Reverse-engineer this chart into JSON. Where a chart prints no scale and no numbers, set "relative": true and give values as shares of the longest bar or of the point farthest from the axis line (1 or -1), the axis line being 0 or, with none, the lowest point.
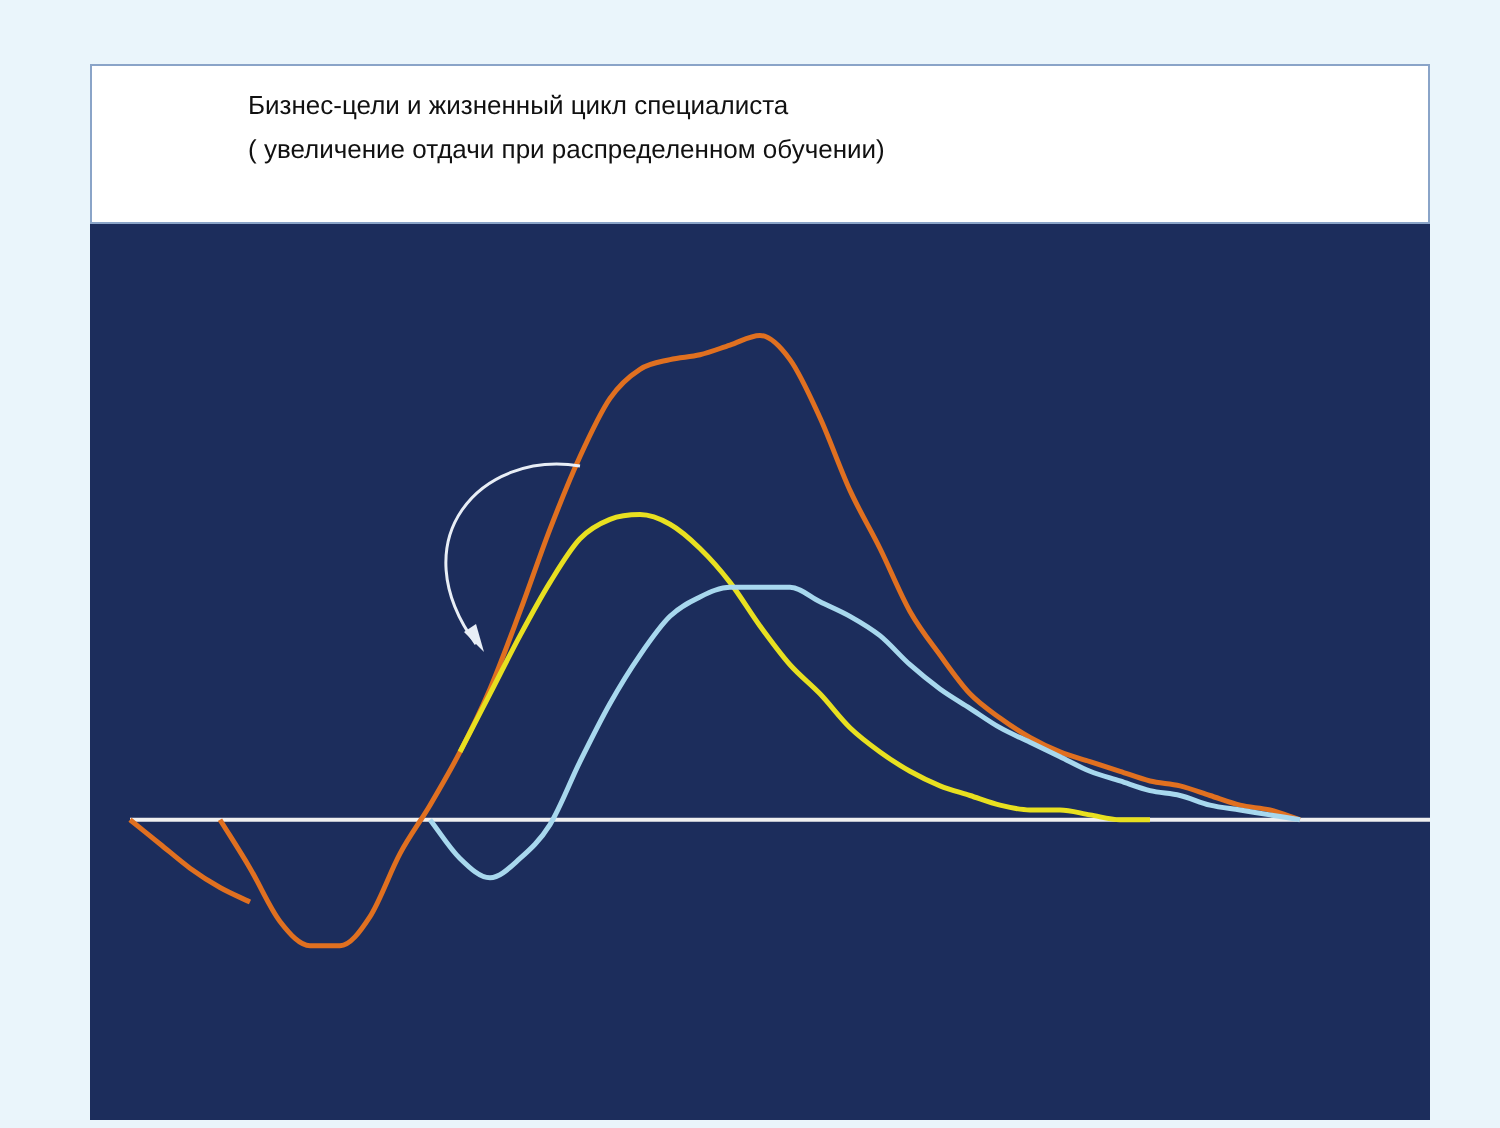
{
  "chart_data": {
    "type": "line",
    "title": "Бизнес-цели и жизненный цикл специалиста",
    "subtitle": "( увеличение отдачи при распределенном обучении)",
    "relative": true,
    "marker": "none",
    "line_style": "solid",
    "categories": [
      null,
      null,
      null,
      null,
      null,
      null,
      null,
      null,
      null,
      null,
      null,
      null,
      null,
      null,
      null,
      null,
      null,
      null,
      null,
      null,
      null,
      null,
      null,
      null,
      null,
      null,
      null,
      null,
      null,
      null,
      null,
      null,
      null,
      null,
      null,
      null,
      null,
      null,
      null,
      null,
      null,
      null,
      null,
      null
    ],
    "series": [
      {
        "color": "#e07020",
        "values": [
          0,
          -0.05,
          -0.1,
          -0.14,
          -0.17,
          null,
          null,
          null,
          null,
          null,
          null,
          null,
          null,
          null,
          null,
          null,
          null,
          null,
          null,
          null,
          null,
          null,
          null,
          null,
          null,
          null,
          null,
          null,
          null,
          null,
          null,
          null,
          null,
          null,
          null,
          null,
          null,
          null,
          null,
          null,
          null,
          null,
          null,
          null
        ]
      },
      {
        "color": "#a8d8ee",
        "values": [
          null,
          null,
          null,
          null,
          null,
          null,
          null,
          null,
          null,
          null,
          0,
          -0.08,
          -0.12,
          -0.08,
          -0.01,
          0.12,
          0.24,
          0.34,
          0.42,
          0.46,
          0.48,
          0.48,
          0.48,
          0.45,
          0.42,
          0.38,
          0.32,
          0.27,
          0.23,
          0.19,
          0.16,
          0.13,
          0.1,
          0.08,
          0.06,
          0.05,
          0.03,
          0.02,
          0.01,
          0,
          null,
          null,
          null,
          null
        ]
      },
      {
        "color": "#e8e020",
        "values": [
          null,
          null,
          null,
          null,
          null,
          null,
          null,
          null,
          null,
          null,
          null,
          0.14,
          0.26,
          0.38,
          0.49,
          0.58,
          0.62,
          0.63,
          0.61,
          0.56,
          0.49,
          0.4,
          0.32,
          0.26,
          0.19,
          0.14,
          0.1,
          0.07,
          0.05,
          0.03,
          0.02,
          0.02,
          0.01,
          0,
          0,
          null,
          null,
          null,
          null,
          null,
          null,
          null,
          null,
          null
        ]
      },
      {
        "color": "#e07020",
        "values": [
          null,
          null,
          null,
          0,
          -0.1,
          -0.21,
          -0.26,
          -0.26,
          -0.2,
          -0.07,
          0.03,
          0.14,
          0.27,
          0.43,
          0.6,
          0.75,
          0.87,
          0.93,
          0.95,
          0.96,
          0.98,
          1,
          0.95,
          0.83,
          0.68,
          0.56,
          0.43,
          0.34,
          0.26,
          0.21,
          0.17,
          0.14,
          0.12,
          0.1,
          0.08,
          0.07,
          0.05,
          0.03,
          0.02,
          0,
          null,
          null,
          null,
          null
        ]
      }
    ]
  }
}
